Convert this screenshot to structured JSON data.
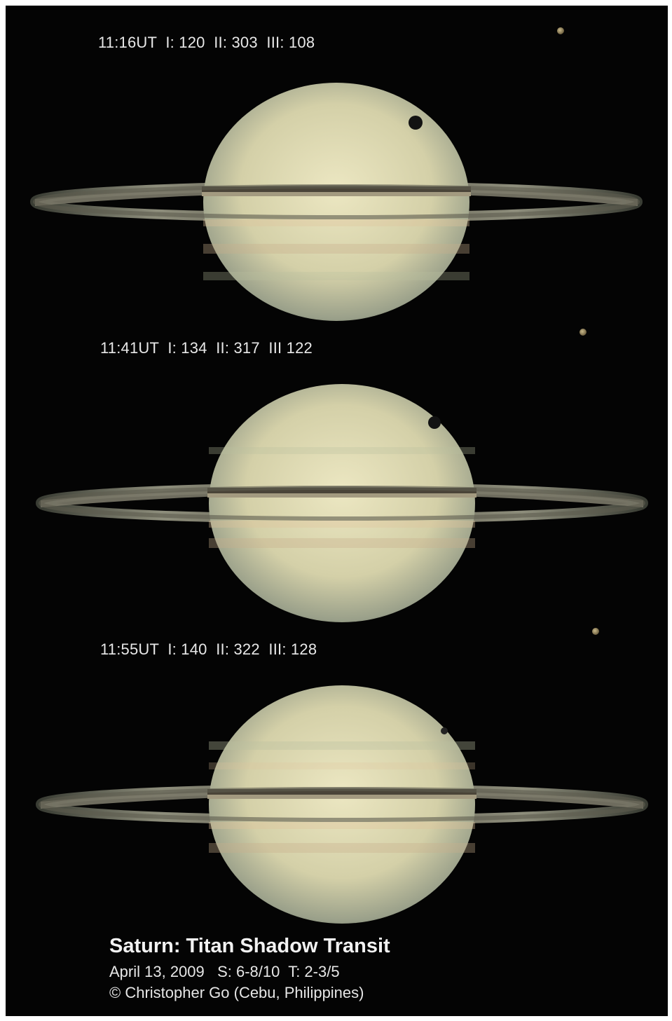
{
  "panels": [
    {
      "label": "11:16UT  I: 120  II: 303  III: 108"
    },
    {
      "label": "11:41UT  I: 134  II: 317  III 122"
    },
    {
      "label": "11:55UT  I: 140  II: 322  III: 128"
    }
  ],
  "caption": {
    "title": "Saturn: Titan Shadow Transit",
    "line1": "April 13, 2009   S: 6-8/10  T: 2-3/5",
    "line2": "© Christopher Go (Cebu, Philippines)"
  },
  "colors": {
    "background": "#040404",
    "frame": "#ffffff",
    "planet": "#d8d4b0",
    "rings": "#8a8a78"
  }
}
